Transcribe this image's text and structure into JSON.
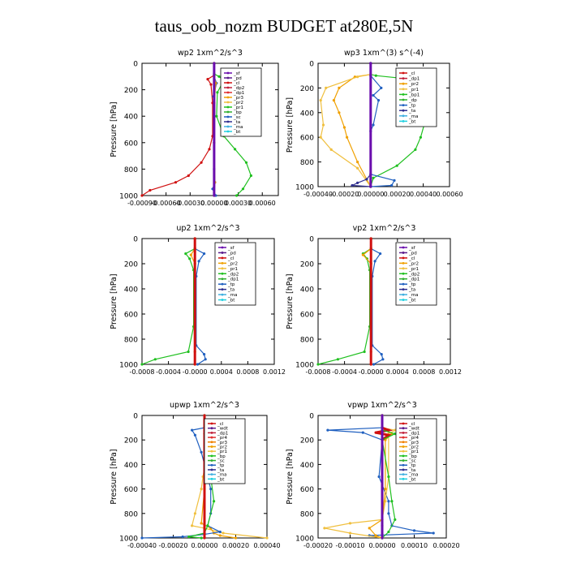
{
  "figure": {
    "title": "taus_oob_nozm  BUDGET at280E,5N"
  },
  "chart_data": [
    {
      "type": "line",
      "title": "wp2   1xm^2/s^3",
      "ylabel": "Pressure [hPa]",
      "xlim": [
        -0.0009,
        0.0008
      ],
      "ylim": [
        1000,
        0
      ],
      "xticks": [
        -0.0009,
        -0.0006,
        -0.0003,
        0.0,
        0.0003,
        0.0006
      ],
      "xtick_labels": [
        "-0.00090",
        "-0.00060",
        "-0.00030",
        "0.00000",
        "0.00030",
        "0.00060"
      ],
      "yticks": [
        0,
        200,
        400,
        600,
        800,
        1000
      ],
      "legend": [
        "_sf",
        "_pd",
        "_cl",
        "_dp2",
        "_dp1",
        "_pr3",
        "_pr2",
        "_pr1",
        "_bp",
        "_sc",
        "_ta",
        "_ma",
        "_bt"
      ],
      "legend_colors": [
        "#6a0dad",
        "#5a1a8c",
        "#d01010",
        "#c0203a",
        "#e03030",
        "#f0a000",
        "#f0c040",
        "#20c020",
        "#30b030",
        "#2060c0",
        "#303090",
        "#40b0e0",
        "#20d0e0"
      ],
      "series": [
        {
          "name": "_bp",
          "color": "#20c020",
          "x": [
            0,
            0,
            6e-05,
            0.00012,
            4e-05,
            3e-05,
            0.00012,
            0.00026,
            0.0004,
            0.00046,
            0.00036,
            0.00028
          ],
          "y": [
            0,
            80,
            100,
            130,
            220,
            400,
            550,
            650,
            750,
            850,
            950,
            1000
          ]
        },
        {
          "name": "_dp1",
          "color": "#d01010",
          "x": [
            0,
            0,
            -8e-05,
            -4e-05,
            -2e-05,
            -2e-05,
            -6e-05,
            -0.00016,
            -0.00032,
            -0.00048,
            -0.0008,
            -0.0009
          ],
          "y": [
            0,
            90,
            120,
            160,
            300,
            550,
            650,
            750,
            850,
            900,
            960,
            1000
          ]
        },
        {
          "name": "_sc",
          "color": "#2060c0",
          "x": [
            0,
            0,
            3e-05,
            -1e-05,
            0,
            0,
            0,
            1e-05,
            -2e-05,
            2e-05
          ],
          "y": [
            0,
            100,
            150,
            250,
            400,
            600,
            800,
            900,
            950,
            1000
          ]
        },
        {
          "name": "_pr2",
          "color": "#f0a000",
          "x": [
            0,
            0,
            2e-05,
            0,
            0,
            1e-05,
            0
          ],
          "y": [
            0,
            100,
            150,
            300,
            600,
            900,
            1000
          ]
        },
        {
          "name": "_sf",
          "color": "#6a0dad",
          "x": [
            0,
            0
          ],
          "y": [
            0,
            1000
          ]
        }
      ]
    },
    {
      "type": "line",
      "title": "wp3   1xm^(3) s^(-4)",
      "ylabel": "Pressure [hPa]",
      "xlim": [
        -0.0004,
        0.0006
      ],
      "ylim": [
        1000,
        0
      ],
      "xticks": [
        -0.0004,
        -0.0002,
        0.0,
        0.0002,
        0.0004,
        0.0006
      ],
      "xtick_labels": [
        "-0.00040",
        "-0.00020",
        "0.00000",
        "0.00020",
        "0.00040",
        "0.00060"
      ],
      "yticks": [
        0,
        200,
        400,
        600,
        800,
        1000
      ],
      "legend": [
        "_cl",
        "_dp1",
        "_pr2",
        "_pr1",
        "_bp1",
        "_dp",
        "_tp",
        "_ta",
        "_ma",
        "_bt"
      ],
      "legend_colors": [
        "#d01010",
        "#c0203a",
        "#f0a000",
        "#f0c040",
        "#20c020",
        "#30b030",
        "#2060c0",
        "#303090",
        "#40b0e0",
        "#20d0e0"
      ],
      "series": [
        {
          "name": "_bp1",
          "color": "#20c020",
          "x": [
            0,
            0,
            4e-05,
            0.00022,
            0.00036,
            0.00044,
            0.00042,
            0.00038,
            0.00034,
            0.0002,
            2e-05,
            0
          ],
          "y": [
            0,
            90,
            100,
            120,
            180,
            300,
            450,
            600,
            700,
            830,
            930,
            1000
          ]
        },
        {
          "name": "_pr2",
          "color": "#f0a000",
          "x": [
            0,
            0,
            -0.00012,
            -0.00024,
            -0.00028,
            -0.00024,
            -0.0002,
            -0.00018,
            -0.0001,
            0
          ],
          "y": [
            0,
            90,
            110,
            200,
            300,
            400,
            520,
            600,
            800,
            1000
          ]
        },
        {
          "name": "_pr1",
          "color": "#f0c040",
          "x": [
            0,
            0,
            -0.0001,
            -0.00034,
            -0.00038,
            -0.00036,
            -0.00038,
            -0.0003,
            -0.0001,
            0
          ],
          "y": [
            0,
            90,
            110,
            200,
            300,
            500,
            600,
            700,
            850,
            1000
          ]
        },
        {
          "name": "_tp",
          "color": "#2060c0",
          "x": [
            0,
            0,
            8e-05,
            2e-05,
            6e-05,
            2e-05,
            0,
            0,
            0.00018,
            0.00016,
            0
          ],
          "y": [
            0,
            100,
            200,
            260,
            300,
            500,
            550,
            900,
            950,
            990,
            1000
          ]
        },
        {
          "name": "_ta",
          "color": "#303090",
          "x": [
            0,
            0,
            -3e-05,
            -0.0001,
            -0.00014,
            0
          ],
          "y": [
            0,
            900,
            940,
            970,
            990,
            1000
          ]
        },
        {
          "name": "_cl",
          "color": "#6a0dad",
          "x": [
            0,
            0
          ],
          "y": [
            0,
            1000
          ]
        }
      ]
    },
    {
      "type": "line",
      "title": "up2   1xm^2/s^3",
      "ylabel": "Pressure [hPa]",
      "xlim": [
        -0.0008,
        0.0012
      ],
      "ylim": [
        1000,
        0
      ],
      "xticks": [
        -0.0008,
        -0.0004,
        0.0,
        0.0004,
        0.0008,
        0.0012
      ],
      "xtick_labels": [
        "-0.0008",
        "-0.0004",
        "-0.0000",
        "0.0004",
        "0.0008",
        "0.0012"
      ],
      "yticks": [
        0,
        200,
        400,
        600,
        800,
        1000
      ],
      "legend": [
        "_sf",
        "_pd",
        "_cl",
        "_pr2",
        "_pr1",
        "_dp2",
        "_dp1",
        "_tp",
        "_ta",
        "_ma",
        "_bt"
      ],
      "legend_colors": [
        "#6a0dad",
        "#5a1a8c",
        "#d01010",
        "#f0a000",
        "#f0c040",
        "#20c020",
        "#30b030",
        "#2060c0",
        "#303090",
        "#40b0e0",
        "#20d0e0"
      ],
      "series": [
        {
          "name": "_dp1",
          "color": "#20c020",
          "x": [
            0,
            0,
            -0.00014,
            -8e-05,
            -2e-05,
            -2e-05,
            -0.0001,
            -0.0006,
            -0.0008
          ],
          "y": [
            0,
            80,
            120,
            160,
            250,
            700,
            900,
            960,
            1000
          ]
        },
        {
          "name": "_tp",
          "color": "#2060c0",
          "x": [
            0,
            0,
            0.00014,
            6e-05,
            2e-05,
            2e-05,
            0.00014,
            0.00016,
            4e-05
          ],
          "y": [
            0,
            80,
            120,
            180,
            300,
            850,
            920,
            960,
            1000
          ]
        },
        {
          "name": "_pr2",
          "color": "#f0a000",
          "x": [
            0,
            0,
            -6e-05,
            0,
            0,
            0
          ],
          "y": [
            0,
            80,
            130,
            200,
            900,
            1000
          ]
        },
        {
          "name": "_cl",
          "color": "#d01010",
          "x": [
            0,
            0
          ],
          "y": [
            0,
            1000
          ]
        }
      ]
    },
    {
      "type": "line",
      "title": "vp2   1xm^2/s^3",
      "ylabel": "Pressure [hPa]",
      "xlim": [
        -0.0008,
        0.0012
      ],
      "ylim": [
        1000,
        0
      ],
      "xticks": [
        -0.0008,
        -0.0004,
        0.0,
        0.0004,
        0.0008,
        0.0012
      ],
      "xtick_labels": [
        "-0.0008",
        "-0.0004",
        "-0.0000",
        "0.0004",
        "0.0008",
        "0.0012"
      ],
      "yticks": [
        0,
        200,
        400,
        600,
        800,
        1000
      ],
      "legend": [
        "_sf",
        "_pd",
        "_cl",
        "_pr2",
        "_pr1",
        "_dp2",
        "_dp1",
        "_tp",
        "_ta",
        "_ma",
        "_bt"
      ],
      "legend_colors": [
        "#6a0dad",
        "#5a1a8c",
        "#d01010",
        "#f0a000",
        "#f0c040",
        "#20c020",
        "#30b030",
        "#2060c0",
        "#303090",
        "#40b0e0",
        "#20d0e0"
      ],
      "series": [
        {
          "name": "_dp1",
          "color": "#20c020",
          "x": [
            0,
            0,
            -0.00012,
            -6e-05,
            -2e-05,
            -2e-05,
            -0.0001,
            -0.0005,
            -0.0008
          ],
          "y": [
            0,
            80,
            120,
            160,
            250,
            700,
            900,
            960,
            1000
          ]
        },
        {
          "name": "_tp",
          "color": "#2060c0",
          "x": [
            0,
            0,
            0.00014,
            6e-05,
            2e-05,
            2e-05,
            0.00016,
            0.00018,
            4e-05
          ],
          "y": [
            0,
            80,
            120,
            180,
            300,
            850,
            920,
            960,
            1000
          ]
        },
        {
          "name": "_pr2",
          "color": "#f0a000",
          "x": [
            0,
            0,
            -0.00012,
            0,
            0,
            0
          ],
          "y": [
            0,
            80,
            130,
            200,
            900,
            1000
          ]
        },
        {
          "name": "_cl",
          "color": "#d01010",
          "x": [
            0,
            0
          ],
          "y": [
            0,
            1000
          ]
        }
      ]
    },
    {
      "type": "line",
      "title": "upwp   1xm^2/s^3",
      "ylabel": "Pressure [hPa]",
      "xlim": [
        -0.0004,
        0.0004
      ],
      "ylim": [
        1000,
        0
      ],
      "xticks": [
        -0.0004,
        -0.0002,
        0.0,
        0.0002,
        0.0004
      ],
      "xtick_labels": [
        "-0.00040",
        "-0.00020",
        "0.00000",
        "0.00020",
        "0.00040"
      ],
      "yticks": [
        0,
        200,
        400,
        600,
        800,
        1000
      ],
      "legend": [
        "_cl",
        "_wdt",
        "_dp1",
        "_pr4",
        "_pr3",
        "_pr2",
        "_pr1",
        "_bp",
        "_sc",
        "_tp",
        "_ta",
        "_ma",
        "_bt"
      ],
      "legend_colors": [
        "#d01010",
        "#5a1a8c",
        "#c0203a",
        "#e03030",
        "#f08000",
        "#f0a000",
        "#f0c040",
        "#20c020",
        "#30b030",
        "#2060c0",
        "#303090",
        "#40b0e0",
        "#20d0e0"
      ],
      "series": [
        {
          "name": "_pr2",
          "color": "#f0c040",
          "x": [
            0,
            0,
            2e-05,
            4e-05,
            2e-05,
            -1e-05,
            -2e-05,
            -6e-05,
            -8e-05,
            0,
            0.00012,
            0.0004
          ],
          "y": [
            0,
            100,
            120,
            150,
            300,
            500,
            600,
            800,
            900,
            920,
            960,
            1000
          ]
        },
        {
          "name": "_pr1",
          "color": "#f0a000",
          "x": [
            0,
            0,
            6e-05,
            5e-05,
            3e-05,
            0,
            0,
            -2e-05,
            4e-05,
            6e-05,
            0.0001,
            0.0002
          ],
          "y": [
            0,
            100,
            120,
            160,
            300,
            500,
            600,
            880,
            920,
            960,
            980,
            1000
          ]
        },
        {
          "name": "_tp",
          "color": "#2060c0",
          "x": [
            0,
            0,
            -8e-05,
            -6e-05,
            -2e-05,
            2e-05,
            4e-05,
            4e-05,
            2e-05,
            0.0001,
            0,
            -0.00014,
            -0.0004
          ],
          "y": [
            0,
            100,
            120,
            160,
            300,
            500,
            600,
            800,
            900,
            950,
            970,
            990,
            1000
          ]
        },
        {
          "name": "_bp",
          "color": "#20c020",
          "x": [
            0,
            0,
            2e-05,
            4e-05,
            6e-05,
            2e-05,
            0,
            -0.0001,
            -2e-05
          ],
          "y": [
            0,
            150,
            300,
            500,
            700,
            900,
            960,
            990,
            1000
          ]
        },
        {
          "name": "_dp1",
          "color": "#d01010",
          "x": [
            0,
            0
          ],
          "y": [
            0,
            1000
          ]
        }
      ]
    },
    {
      "type": "line",
      "title": "vpwp   1xm^2/s^3",
      "ylabel": "Pressure [hPa]",
      "xlim": [
        -0.0002,
        0.0002
      ],
      "ylim": [
        1000,
        0
      ],
      "xticks": [
        -0.0002,
        -0.0001,
        0.0,
        0.0001,
        0.0002
      ],
      "xtick_labels": [
        "-0.00020",
        "-0.00010",
        "0.00000",
        "0.00010",
        "0.00020"
      ],
      "yticks": [
        0,
        200,
        400,
        600,
        800,
        1000
      ],
      "legend": [
        "_cl",
        "_wdt",
        "_dp1",
        "_pr4",
        "_pr3",
        "_pr2",
        "_pr1",
        "_bp",
        "_sc",
        "_tp",
        "_ta",
        "_ma",
        "_bt"
      ],
      "legend_colors": [
        "#d01010",
        "#5a1a8c",
        "#c0203a",
        "#e03030",
        "#f08000",
        "#f0a000",
        "#f0c040",
        "#20c020",
        "#30b030",
        "#2060c0",
        "#303090",
        "#40b0e0",
        "#20d0e0"
      ],
      "series": [
        {
          "name": "_tp",
          "color": "#2060c0",
          "x": [
            0,
            0,
            -0.00017,
            -6e-05,
            0,
            -1e-05,
            2e-05,
            2e-05,
            3e-05,
            0.0001,
            0.00016,
            -4e-05,
            0
          ],
          "y": [
            0,
            100,
            120,
            140,
            200,
            500,
            700,
            800,
            900,
            940,
            960,
            980,
            1000
          ]
        },
        {
          "name": "_pr2",
          "color": "#f0c040",
          "x": [
            0,
            0,
            4e-05,
            2e-05,
            2e-05,
            1e-05,
            0,
            -0.0001,
            -0.00018,
            -0.0001,
            0
          ],
          "y": [
            0,
            100,
            120,
            150,
            500,
            700,
            850,
            880,
            920,
            960,
            1000
          ]
        },
        {
          "name": "_pr1",
          "color": "#f0a000",
          "x": [
            0,
            0,
            3e-05,
            1e-05,
            1e-05,
            0,
            -4e-05,
            -2e-05,
            0
          ],
          "y": [
            0,
            100,
            150,
            200,
            600,
            850,
            920,
            980,
            1000
          ]
        },
        {
          "name": "_dp1",
          "color": "#d01010",
          "x": [
            0,
            0,
            2e-05,
            -2e-05,
            2e-05,
            0,
            0,
            0
          ],
          "y": [
            0,
            100,
            120,
            140,
            160,
            200,
            900,
            1000
          ]
        },
        {
          "name": "_bp",
          "color": "#20c020",
          "x": [
            0,
            0,
            4e-05,
            0,
            2e-05,
            3e-05,
            4e-05,
            2e-05,
            0
          ],
          "y": [
            0,
            120,
            150,
            200,
            500,
            700,
            850,
            950,
            1000
          ]
        },
        {
          "name": "_cl",
          "color": "#6a0dad",
          "x": [
            0,
            0
          ],
          "y": [
            0,
            1000
          ]
        }
      ]
    }
  ]
}
